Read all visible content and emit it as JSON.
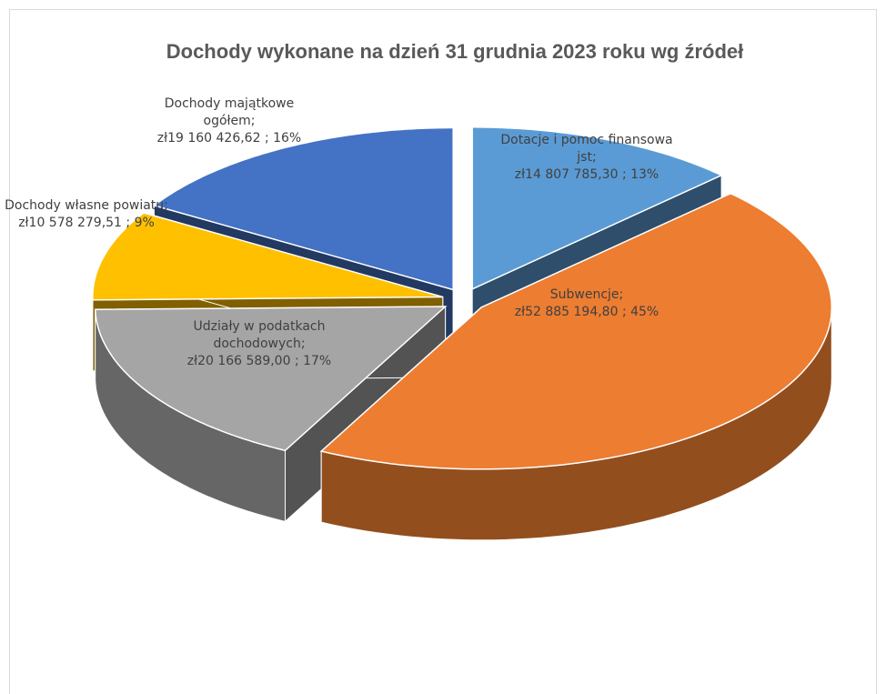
{
  "chart_data": {
    "type": "pie3d",
    "title": "Dochody wykonane na dzień 31 grudnia 2023 roku wg źródeł",
    "categories": [
      "Dotacje i pomoc finansowa jst;",
      "Subwencje;",
      "Udziały w podatkach dochodowych;",
      "Dochody własne powiatu;",
      "Dochody majątkowe ogółem;"
    ],
    "values": [
      14807785.3,
      52885194.8,
      20166589.0,
      10578279.51,
      19160426.62
    ],
    "value_labels": [
      "zł14 807 785,30 ; 13%",
      "zł52 885 194,80 ; 45%",
      "zł20 166 589,00 ; 17%",
      "zł10 578 279,51 ; 9%",
      "zł19 160 426,62 ; 16%"
    ],
    "colors": [
      "#5b9bd5",
      "#ed7d31",
      "#a5a5a5",
      "#ffc000",
      "#4472c4"
    ]
  }
}
